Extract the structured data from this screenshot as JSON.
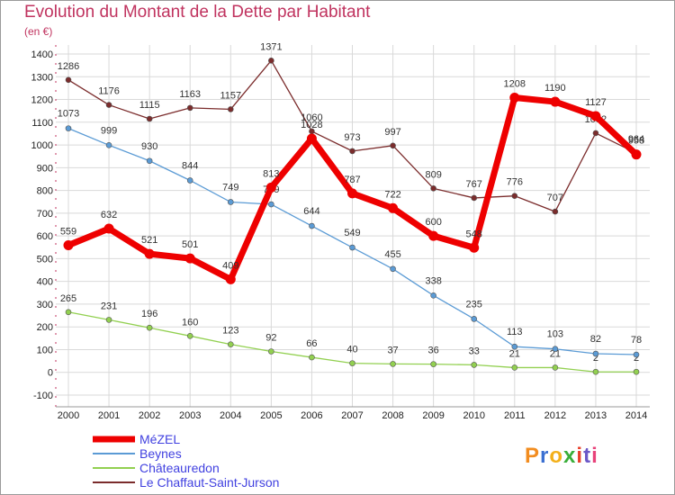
{
  "title": "Evolution du Montant de la Dette par Habitant",
  "subtitle": "(en €)",
  "logo": {
    "text": "Proxiti",
    "colors": [
      "#f28c1f",
      "#3a6fd1",
      "#f3b01a",
      "#3aae3a",
      "#e93e2a",
      "#6b57c7",
      "#e8427a"
    ]
  },
  "chart_data": {
    "type": "line",
    "title": "Evolution du Montant de la Dette par Habitant",
    "subtitle": "(en €)",
    "x": [
      2000,
      2001,
      2002,
      2003,
      2004,
      2005,
      2006,
      2007,
      2008,
      2009,
      2010,
      2011,
      2012,
      2013,
      2014
    ],
    "ylim": [
      -100,
      1400
    ],
    "yticks": [
      -100,
      0,
      100,
      200,
      300,
      400,
      500,
      600,
      700,
      800,
      900,
      1000,
      1100,
      1200,
      1300,
      1400
    ],
    "grid": true,
    "legend_position": "bottom-left",
    "series": [
      {
        "name": "MéZEL",
        "color": "#ee0000",
        "values": [
          559,
          632,
          521,
          501,
          409,
          813,
          1028,
          787,
          722,
          600,
          548,
          1208,
          1190,
          1127,
          958
        ]
      },
      {
        "name": "Beynes",
        "color": "#5b9bd5",
        "values": [
          1073,
          999,
          930,
          844,
          749,
          739,
          644,
          549,
          455,
          338,
          235,
          113,
          103,
          82,
          78
        ]
      },
      {
        "name": "Châteauredon",
        "color": "#92d050",
        "values": [
          265,
          231,
          196,
          160,
          123,
          92,
          66,
          40,
          37,
          36,
          33,
          21,
          21,
          2,
          2
        ]
      },
      {
        "name": "Le Chaffaut-Saint-Jurson",
        "color": "#7b2c2c",
        "values": [
          1286,
          1176,
          1115,
          1163,
          1157,
          1371,
          1060,
          973,
          997,
          809,
          767,
          776,
          707,
          1052,
          964
        ]
      }
    ]
  }
}
